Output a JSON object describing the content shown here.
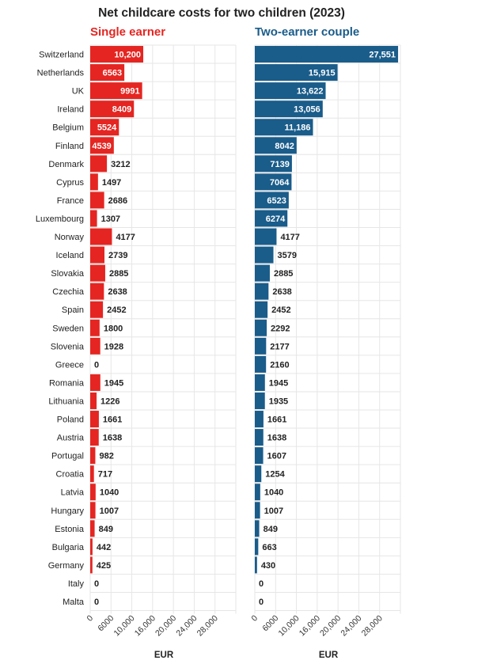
{
  "title": "Net childcare costs for two children (2023)",
  "colors": {
    "single": "#e52521",
    "couple": "#1a5c8a",
    "grid": "#e6e6e6",
    "text": "#222222"
  },
  "chart_data": [
    {
      "type": "bar",
      "orientation": "horizontal",
      "title": "Single earner",
      "xlabel": "EUR",
      "xlim": [
        0,
        28000
      ],
      "xticks": [
        "0",
        "6000",
        "10,000",
        "16,000",
        "20,000",
        "24,000",
        "28,000"
      ],
      "grid": true,
      "categories": [
        "Switzerland",
        "Netherlands",
        "UK",
        "Ireland",
        "Belgium",
        "Finland",
        "Denmark",
        "Cyprus",
        "France",
        "Luxembourg",
        "Norway",
        "Iceland",
        "Slovakia",
        "Czechia",
        "Spain",
        "Sweden",
        "Slovenia",
        "Greece",
        "Romania",
        "Lithuania",
        "Poland",
        "Austria",
        "Portugal",
        "Croatia",
        "Latvia",
        "Hungary",
        "Estonia",
        "Bulgaria",
        "Germany",
        "Italy",
        "Malta"
      ],
      "values": [
        10200,
        6563,
        9991,
        8409,
        5524,
        4539,
        3212,
        1497,
        2686,
        1307,
        4177,
        2739,
        2885,
        2638,
        2452,
        1800,
        1928,
        0,
        1945,
        1226,
        1661,
        1638,
        982,
        717,
        1040,
        1007,
        849,
        442,
        425,
        0,
        0
      ],
      "labels": [
        "10,200",
        "6563",
        "9991",
        "8409",
        "5524",
        "4539",
        "3212",
        "1497",
        "2686",
        "1307",
        "4177",
        "2739",
        "2885",
        "2638",
        "2452",
        "1800",
        "1928",
        "0",
        "1945",
        "1226",
        "1661",
        "1638",
        "982",
        "717",
        "1040",
        "1007",
        "849",
        "442",
        "425",
        "0",
        "0"
      ]
    },
    {
      "type": "bar",
      "orientation": "horizontal",
      "title": "Two-earner couple",
      "xlabel": "EUR",
      "xlim": [
        0,
        28000
      ],
      "xticks": [
        "0",
        "6000",
        "10,000",
        "16,000",
        "20,000",
        "24,000",
        "28,000"
      ],
      "grid": true,
      "categories": [
        "Switzerland",
        "Netherlands",
        "UK",
        "Ireland",
        "Belgium",
        "Finland",
        "Denmark",
        "Cyprus",
        "France",
        "Luxembourg",
        "Norway",
        "Iceland",
        "Slovakia",
        "Czechia",
        "Spain",
        "Sweden",
        "Slovenia",
        "Greece",
        "Romania",
        "Lithuania",
        "Poland",
        "Austria",
        "Portugal",
        "Croatia",
        "Latvia",
        "Hungary",
        "Estonia",
        "Bulgaria",
        "Germany",
        "Italy",
        "Malta"
      ],
      "values": [
        27551,
        15915,
        13622,
        13056,
        11186,
        8042,
        7139,
        7064,
        6523,
        6274,
        4177,
        3579,
        2885,
        2638,
        2452,
        2292,
        2177,
        2160,
        1945,
        1935,
        1661,
        1638,
        1607,
        1254,
        1040,
        1007,
        849,
        663,
        430,
        0,
        0
      ],
      "labels": [
        "27,551",
        "15,915",
        "13,622",
        "13,056",
        "11,186",
        "8042",
        "7139",
        "7064",
        "6523",
        "6274",
        "4177",
        "3579",
        "2885",
        "2638",
        "2452",
        "2292",
        "2177",
        "2160",
        "1945",
        "1935",
        "1661",
        "1638",
        "1607",
        "1254",
        "1040",
        "1007",
        "849",
        "663",
        "430",
        "0",
        "0"
      ]
    }
  ]
}
